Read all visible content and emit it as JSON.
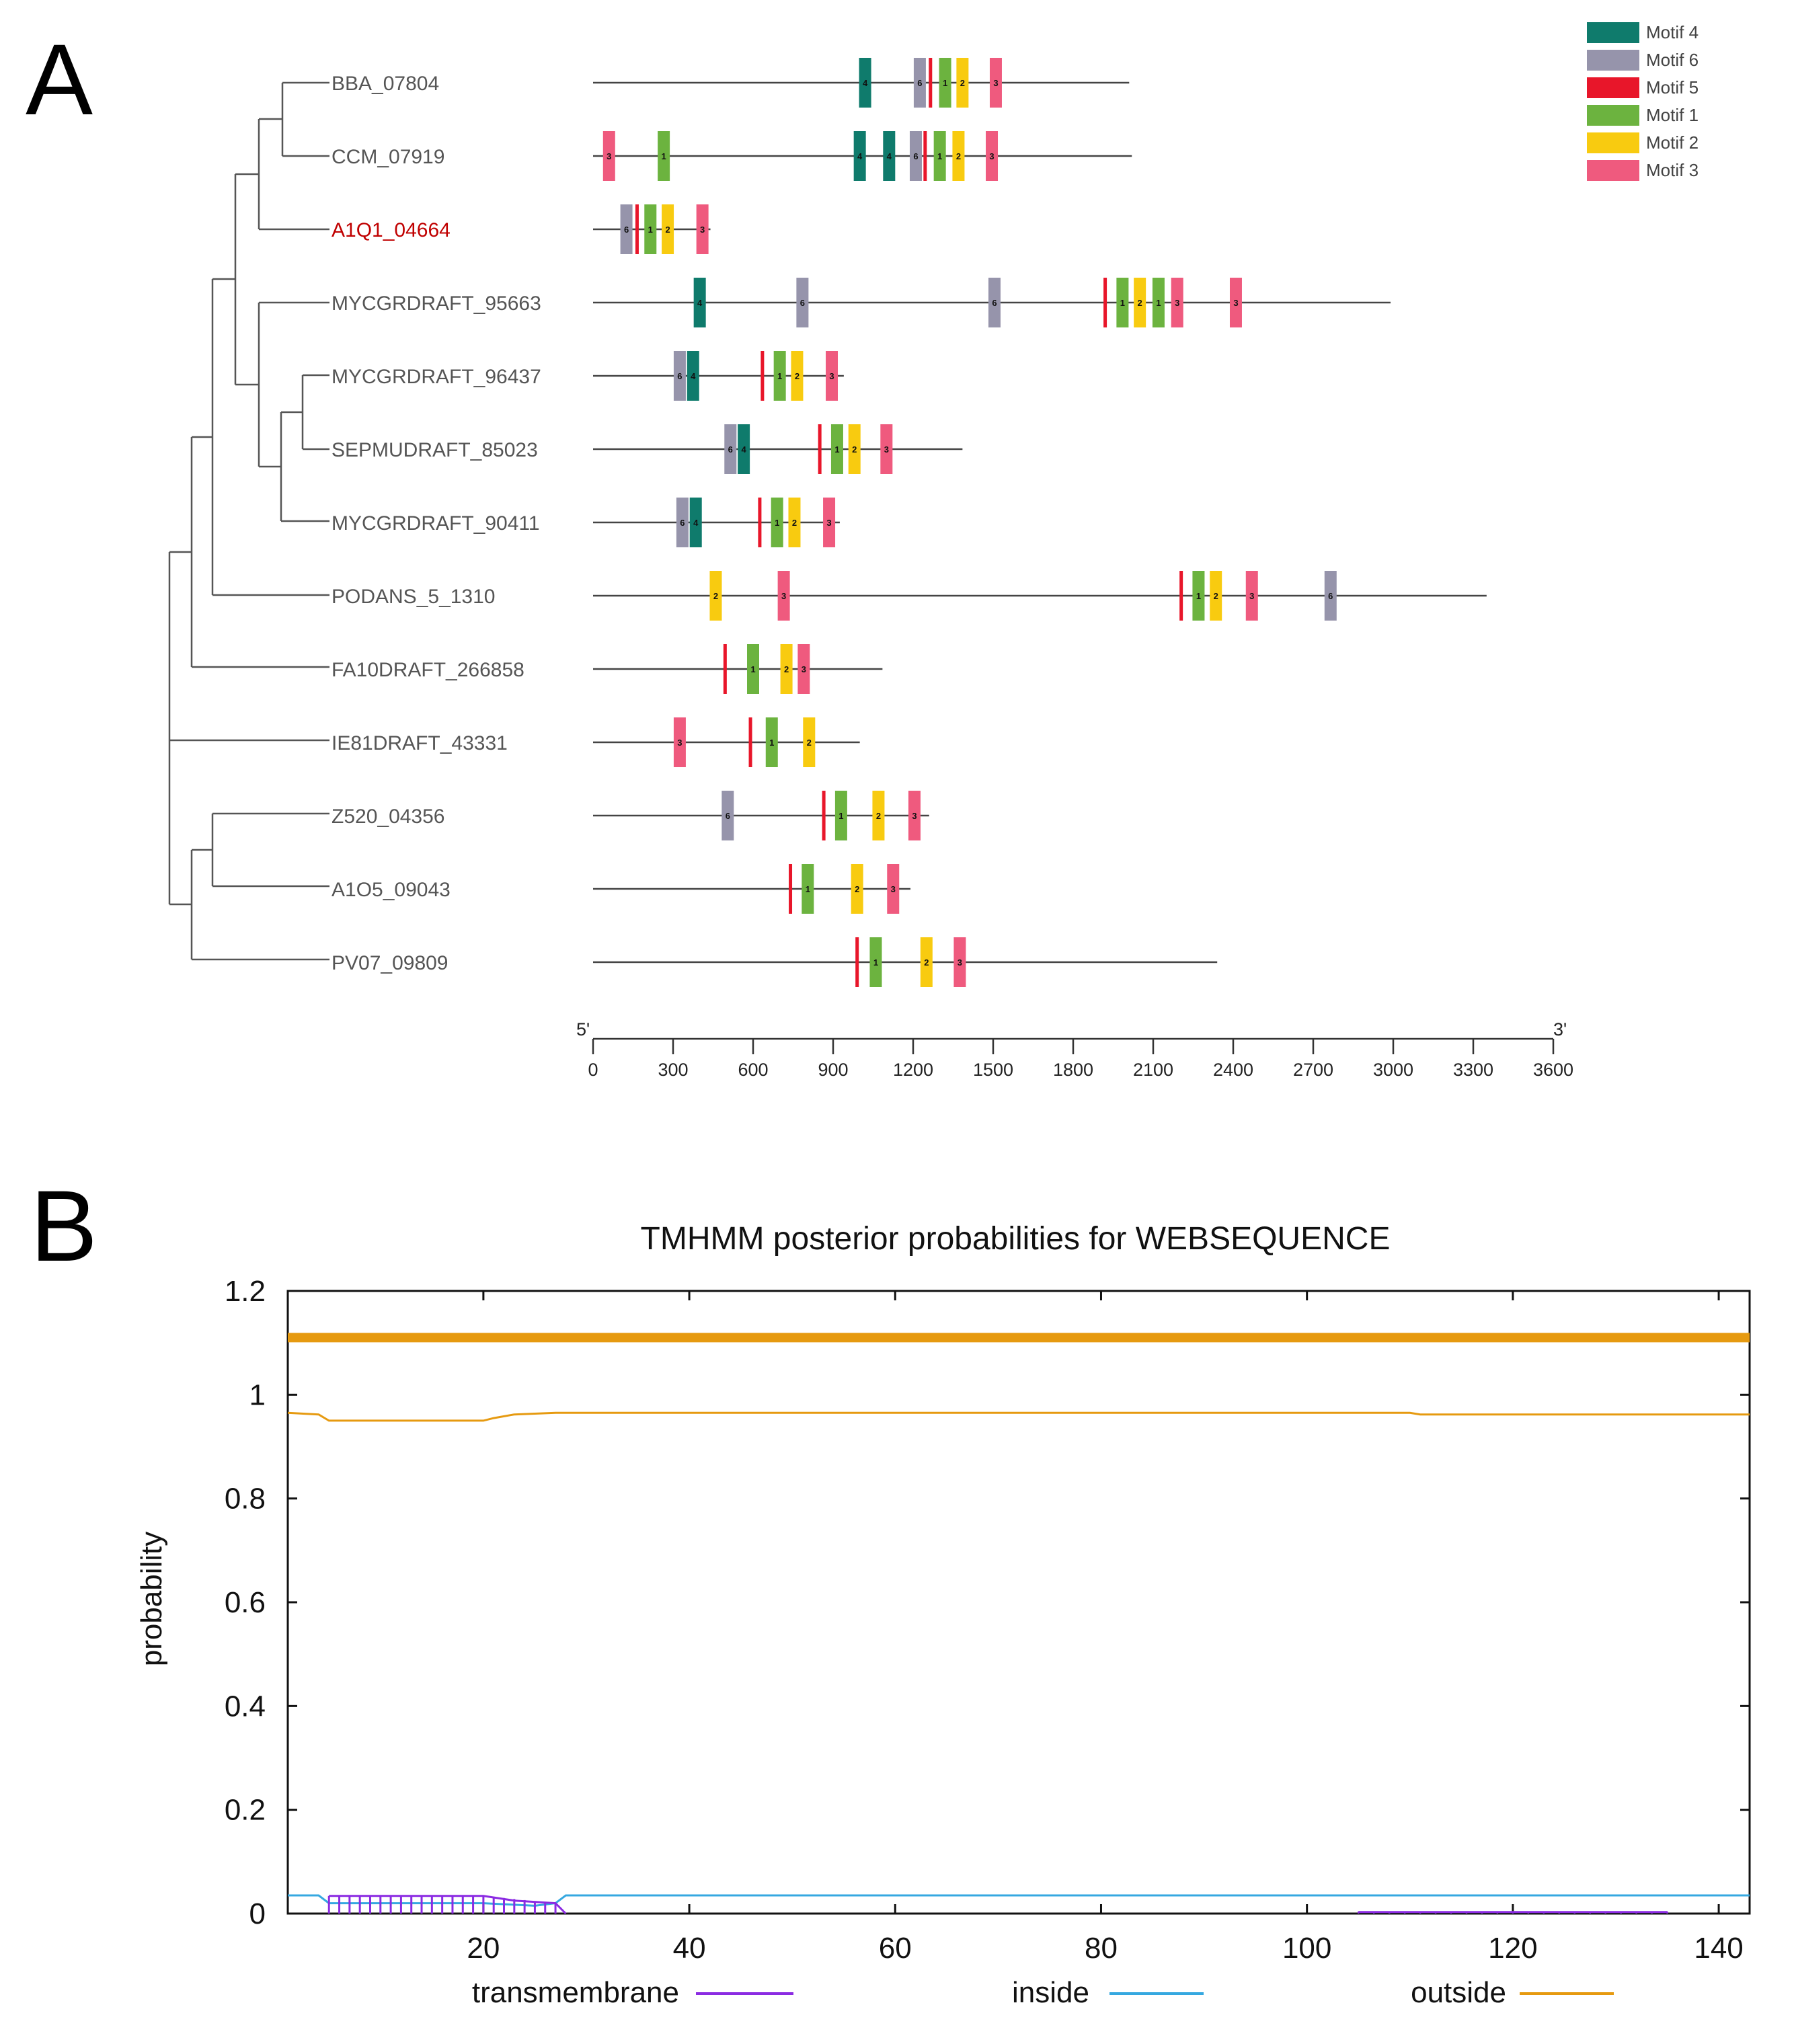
{
  "panel_a_letter": "A",
  "panel_b_letter": "B",
  "chart_data": [
    {
      "type": "motif_map",
      "panel": "A",
      "tree": "phylogenetic dendrogram",
      "axis": {
        "start_label": "5'",
        "end_label": "3'",
        "min": 0,
        "max": 3600,
        "ticks": [
          "0",
          "300",
          "600",
          "900",
          "1200",
          "1500",
          "1800",
          "2100",
          "2400",
          "2700",
          "3000",
          "3300",
          "3600"
        ]
      },
      "legend": [
        {
          "id": "4",
          "name": "Motif 4",
          "color": "#0f7b6c"
        },
        {
          "id": "6",
          "name": "Motif 6",
          "color": "#9694ab"
        },
        {
          "id": "5",
          "name": "Motif 5",
          "color": "#e8162a"
        },
        {
          "id": "1",
          "name": "Motif 1",
          "color": "#6cb33f"
        },
        {
          "id": "2",
          "name": "Motif 2",
          "color": "#f8cb10"
        },
        {
          "id": "3",
          "name": "Motif 3",
          "color": "#ef5a7e"
        }
      ],
      "genes": [
        {
          "name": "BBA_07804",
          "length": 2010,
          "motifs": [
            {
              "id": "4",
              "pos": 1020
            },
            {
              "id": "6",
              "pos": 1225
            },
            {
              "id": "5",
              "pos": 1265
            },
            {
              "id": "1",
              "pos": 1320
            },
            {
              "id": "2",
              "pos": 1385
            },
            {
              "id": "3",
              "pos": 1510
            }
          ]
        },
        {
          "name": "CCM_07919",
          "length": 2020,
          "motifs": [
            {
              "id": "3",
              "pos": 60
            },
            {
              "id": "1",
              "pos": 265
            },
            {
              "id": "4",
              "pos": 1000
            },
            {
              "id": "4",
              "pos": 1110
            },
            {
              "id": "6",
              "pos": 1210
            },
            {
              "id": "5",
              "pos": 1245
            },
            {
              "id": "1",
              "pos": 1300
            },
            {
              "id": "2",
              "pos": 1370
            },
            {
              "id": "3",
              "pos": 1495
            }
          ]
        },
        {
          "name": "A1Q1_04664",
          "length": 440,
          "highlight": true,
          "motifs": [
            {
              "id": "6",
              "pos": 125
            },
            {
              "id": "5",
              "pos": 165
            },
            {
              "id": "1",
              "pos": 215
            },
            {
              "id": "2",
              "pos": 280
            },
            {
              "id": "3",
              "pos": 410
            }
          ]
        },
        {
          "name": "MYCGRDRAFT_95663",
          "length": 2990,
          "motifs": [
            {
              "id": "4",
              "pos": 400
            },
            {
              "id": "6",
              "pos": 785
            },
            {
              "id": "6",
              "pos": 1505
            },
            {
              "id": "5",
              "pos": 1920
            },
            {
              "id": "1",
              "pos": 1985
            },
            {
              "id": "2",
              "pos": 2050
            },
            {
              "id": "1",
              "pos": 2120
            },
            {
              "id": "3",
              "pos": 2190
            },
            {
              "id": "3",
              "pos": 2410
            }
          ]
        },
        {
          "name": "MYCGRDRAFT_96437",
          "length": 940,
          "motifs": [
            {
              "id": "6",
              "pos": 325
            },
            {
              "id": "4",
              "pos": 375
            },
            {
              "id": "5",
              "pos": 635
            },
            {
              "id": "1",
              "pos": 700
            },
            {
              "id": "2",
              "pos": 765
            },
            {
              "id": "3",
              "pos": 895
            }
          ]
        },
        {
          "name": "SEPMUDRAFT_85023",
          "length": 1385,
          "motifs": [
            {
              "id": "6",
              "pos": 515
            },
            {
              "id": "4",
              "pos": 565
            },
            {
              "id": "5",
              "pos": 850
            },
            {
              "id": "1",
              "pos": 915
            },
            {
              "id": "2",
              "pos": 980
            },
            {
              "id": "3",
              "pos": 1100
            }
          ]
        },
        {
          "name": "MYCGRDRAFT_90411",
          "length": 925,
          "motifs": [
            {
              "id": "6",
              "pos": 335
            },
            {
              "id": "4",
              "pos": 385
            },
            {
              "id": "5",
              "pos": 625
            },
            {
              "id": "1",
              "pos": 690
            },
            {
              "id": "2",
              "pos": 755
            },
            {
              "id": "3",
              "pos": 885
            }
          ]
        },
        {
          "name": "PODANS_5_1310",
          "length": 3350,
          "motifs": [
            {
              "id": "2",
              "pos": 460
            },
            {
              "id": "3",
              "pos": 715
            },
            {
              "id": "5",
              "pos": 2205
            },
            {
              "id": "1",
              "pos": 2270
            },
            {
              "id": "2",
              "pos": 2335
            },
            {
              "id": "3",
              "pos": 2470
            },
            {
              "id": "6",
              "pos": 2765
            }
          ]
        },
        {
          "name": "FA10DRAFT_266858",
          "length": 1085,
          "motifs": [
            {
              "id": "5",
              "pos": 495
            },
            {
              "id": "1",
              "pos": 600
            },
            {
              "id": "2",
              "pos": 725
            },
            {
              "id": "3",
              "pos": 790
            }
          ]
        },
        {
          "name": "IE81DRAFT_43331",
          "length": 1000,
          "motifs": [
            {
              "id": "3",
              "pos": 325
            },
            {
              "id": "5",
              "pos": 590
            },
            {
              "id": "1",
              "pos": 670
            },
            {
              "id": "2",
              "pos": 810
            }
          ]
        },
        {
          "name": "Z520_04356",
          "length": 1260,
          "motifs": [
            {
              "id": "6",
              "pos": 505
            },
            {
              "id": "5",
              "pos": 865
            },
            {
              "id": "1",
              "pos": 930
            },
            {
              "id": "2",
              "pos": 1070
            },
            {
              "id": "3",
              "pos": 1205
            }
          ]
        },
        {
          "name": "A1O5_09043",
          "length": 1190,
          "motifs": [
            {
              "id": "5",
              "pos": 740
            },
            {
              "id": "1",
              "pos": 805
            },
            {
              "id": "2",
              "pos": 990
            },
            {
              "id": "3",
              "pos": 1125
            }
          ]
        },
        {
          "name": "PV07_09809",
          "length": 2340,
          "motifs": [
            {
              "id": "5",
              "pos": 990
            },
            {
              "id": "1",
              "pos": 1060
            },
            {
              "id": "2",
              "pos": 1250
            },
            {
              "id": "3",
              "pos": 1375
            }
          ]
        }
      ]
    },
    {
      "type": "line",
      "panel": "B",
      "title": "TMHMM posterior probabilities for WEBSEQUENCE",
      "ylabel": "probability",
      "xlabel": "",
      "xlim": [
        1,
        143
      ],
      "ylim": [
        0,
        1.2
      ],
      "xticks": [
        "20",
        "40",
        "60",
        "80",
        "100",
        "120",
        "140"
      ],
      "yticks": [
        "0",
        "0.2",
        "0.4",
        "0.6",
        "0.8",
        "1",
        "1.2"
      ],
      "legend": [
        {
          "name": "transmembrane",
          "color": "#8b2be2"
        },
        {
          "name": "inside",
          "color": "#35a8e0"
        },
        {
          "name": "outside",
          "color": "#e69a10"
        }
      ],
      "series": [
        {
          "name": "outside_band",
          "color": "#e69a10",
          "points": [
            [
              1,
              1.11
            ],
            [
              143,
              1.11
            ]
          ]
        },
        {
          "name": "outside",
          "color": "#e69a10",
          "points": [
            [
              1,
              0.965
            ],
            [
              4,
              0.962
            ],
            [
              5,
              0.95
            ],
            [
              20,
              0.95
            ],
            [
              21,
              0.955
            ],
            [
              23,
              0.962
            ],
            [
              27,
              0.965
            ],
            [
              110,
              0.965
            ],
            [
              111,
              0.962
            ],
            [
              143,
              0.962
            ]
          ]
        },
        {
          "name": "inside",
          "color": "#35a8e0",
          "points": [
            [
              1,
              0.035
            ],
            [
              4,
              0.035
            ],
            [
              5,
              0.02
            ],
            [
              20,
              0.02
            ],
            [
              25,
              0.015
            ],
            [
              27,
              0.02
            ],
            [
              28,
              0.035
            ],
            [
              143,
              0.035
            ]
          ]
        },
        {
          "name": "transmembrane",
          "color": "#8b2be2",
          "points": [
            [
              5,
              0.034
            ],
            [
              20,
              0.034
            ],
            [
              23,
              0.025
            ],
            [
              27,
              0.02
            ],
            [
              28,
              0.0
            ]
          ]
        },
        {
          "name": "transmembrane_tail",
          "color": "#8b2be2",
          "points": [
            [
              105,
              0.003
            ],
            [
              135,
              0.003
            ]
          ]
        }
      ]
    }
  ]
}
